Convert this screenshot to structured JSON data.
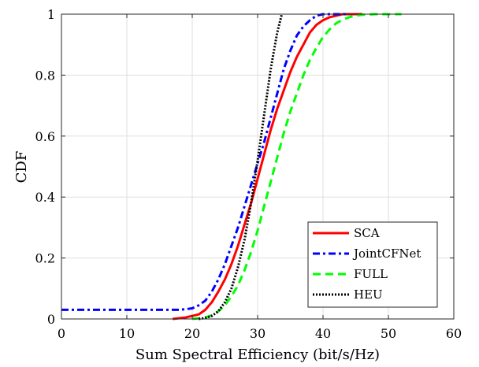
{
  "chart_data": {
    "type": "line",
    "title": "",
    "xlabel": "Sum Spectral Efficiency (bit/s/Hz)",
    "ylabel": "CDF",
    "xlim": [
      0,
      60
    ],
    "ylim": [
      0,
      1
    ],
    "xticks": [
      "0",
      "10",
      "20",
      "30",
      "40",
      "50",
      "60"
    ],
    "yticks": [
      "0",
      "0.2",
      "0.4",
      "0.6",
      "0.8",
      "1"
    ],
    "grid": true,
    "legend_position": "bottom-right",
    "series": [
      {
        "name": "SCA",
        "color": "#ff0000",
        "style": "solid",
        "x": [
          17,
          19,
          21,
          22,
          23,
          24,
          25,
          26,
          27,
          28,
          29,
          30,
          31,
          32,
          33,
          34,
          35,
          36,
          37,
          38,
          39,
          40,
          41,
          42,
          43,
          44,
          45,
          46
        ],
        "y": [
          0,
          0.005,
          0.015,
          0.03,
          0.055,
          0.09,
          0.13,
          0.18,
          0.24,
          0.31,
          0.38,
          0.46,
          0.54,
          0.62,
          0.69,
          0.75,
          0.81,
          0.86,
          0.9,
          0.94,
          0.965,
          0.98,
          0.99,
          0.995,
          1,
          1,
          1,
          1
        ]
      },
      {
        "name": "JointCFNet",
        "color": "#0000ff",
        "style": "dashdot",
        "x": [
          0,
          18,
          19,
          20,
          21,
          22,
          23,
          24,
          25,
          26,
          27,
          28,
          29,
          30,
          31,
          32,
          33,
          34,
          35,
          36,
          37,
          38,
          39,
          40,
          41,
          42,
          43,
          44
        ],
        "y": [
          0.03,
          0.03,
          0.032,
          0.035,
          0.045,
          0.06,
          0.09,
          0.13,
          0.18,
          0.24,
          0.3,
          0.37,
          0.44,
          0.51,
          0.58,
          0.66,
          0.74,
          0.82,
          0.88,
          0.93,
          0.96,
          0.98,
          0.995,
          1,
          1,
          1,
          1,
          1
        ]
      },
      {
        "name": "FULL",
        "color": "#00ff00",
        "style": "dashed",
        "x": [
          20,
          22,
          23,
          24,
          25,
          26,
          27,
          28,
          29,
          30,
          31,
          32,
          33,
          34,
          35,
          36,
          37,
          38,
          39,
          40,
          41,
          42,
          43,
          44,
          45,
          46,
          48,
          50,
          52
        ],
        "y": [
          0,
          0.005,
          0.012,
          0.025,
          0.045,
          0.075,
          0.11,
          0.16,
          0.22,
          0.29,
          0.37,
          0.45,
          0.53,
          0.61,
          0.68,
          0.74,
          0.8,
          0.85,
          0.89,
          0.925,
          0.95,
          0.97,
          0.982,
          0.99,
          0.995,
          0.998,
          1,
          1,
          1
        ]
      },
      {
        "name": "HEU",
        "color": "#000000",
        "style": "dotted",
        "x": [
          21,
          22,
          23,
          24,
          25,
          26,
          27,
          28,
          29,
          30,
          31,
          32,
          33,
          33.7
        ],
        "y": [
          0,
          0.003,
          0.01,
          0.025,
          0.055,
          0.1,
          0.17,
          0.26,
          0.38,
          0.52,
          0.67,
          0.82,
          0.94,
          1
        ]
      }
    ]
  }
}
